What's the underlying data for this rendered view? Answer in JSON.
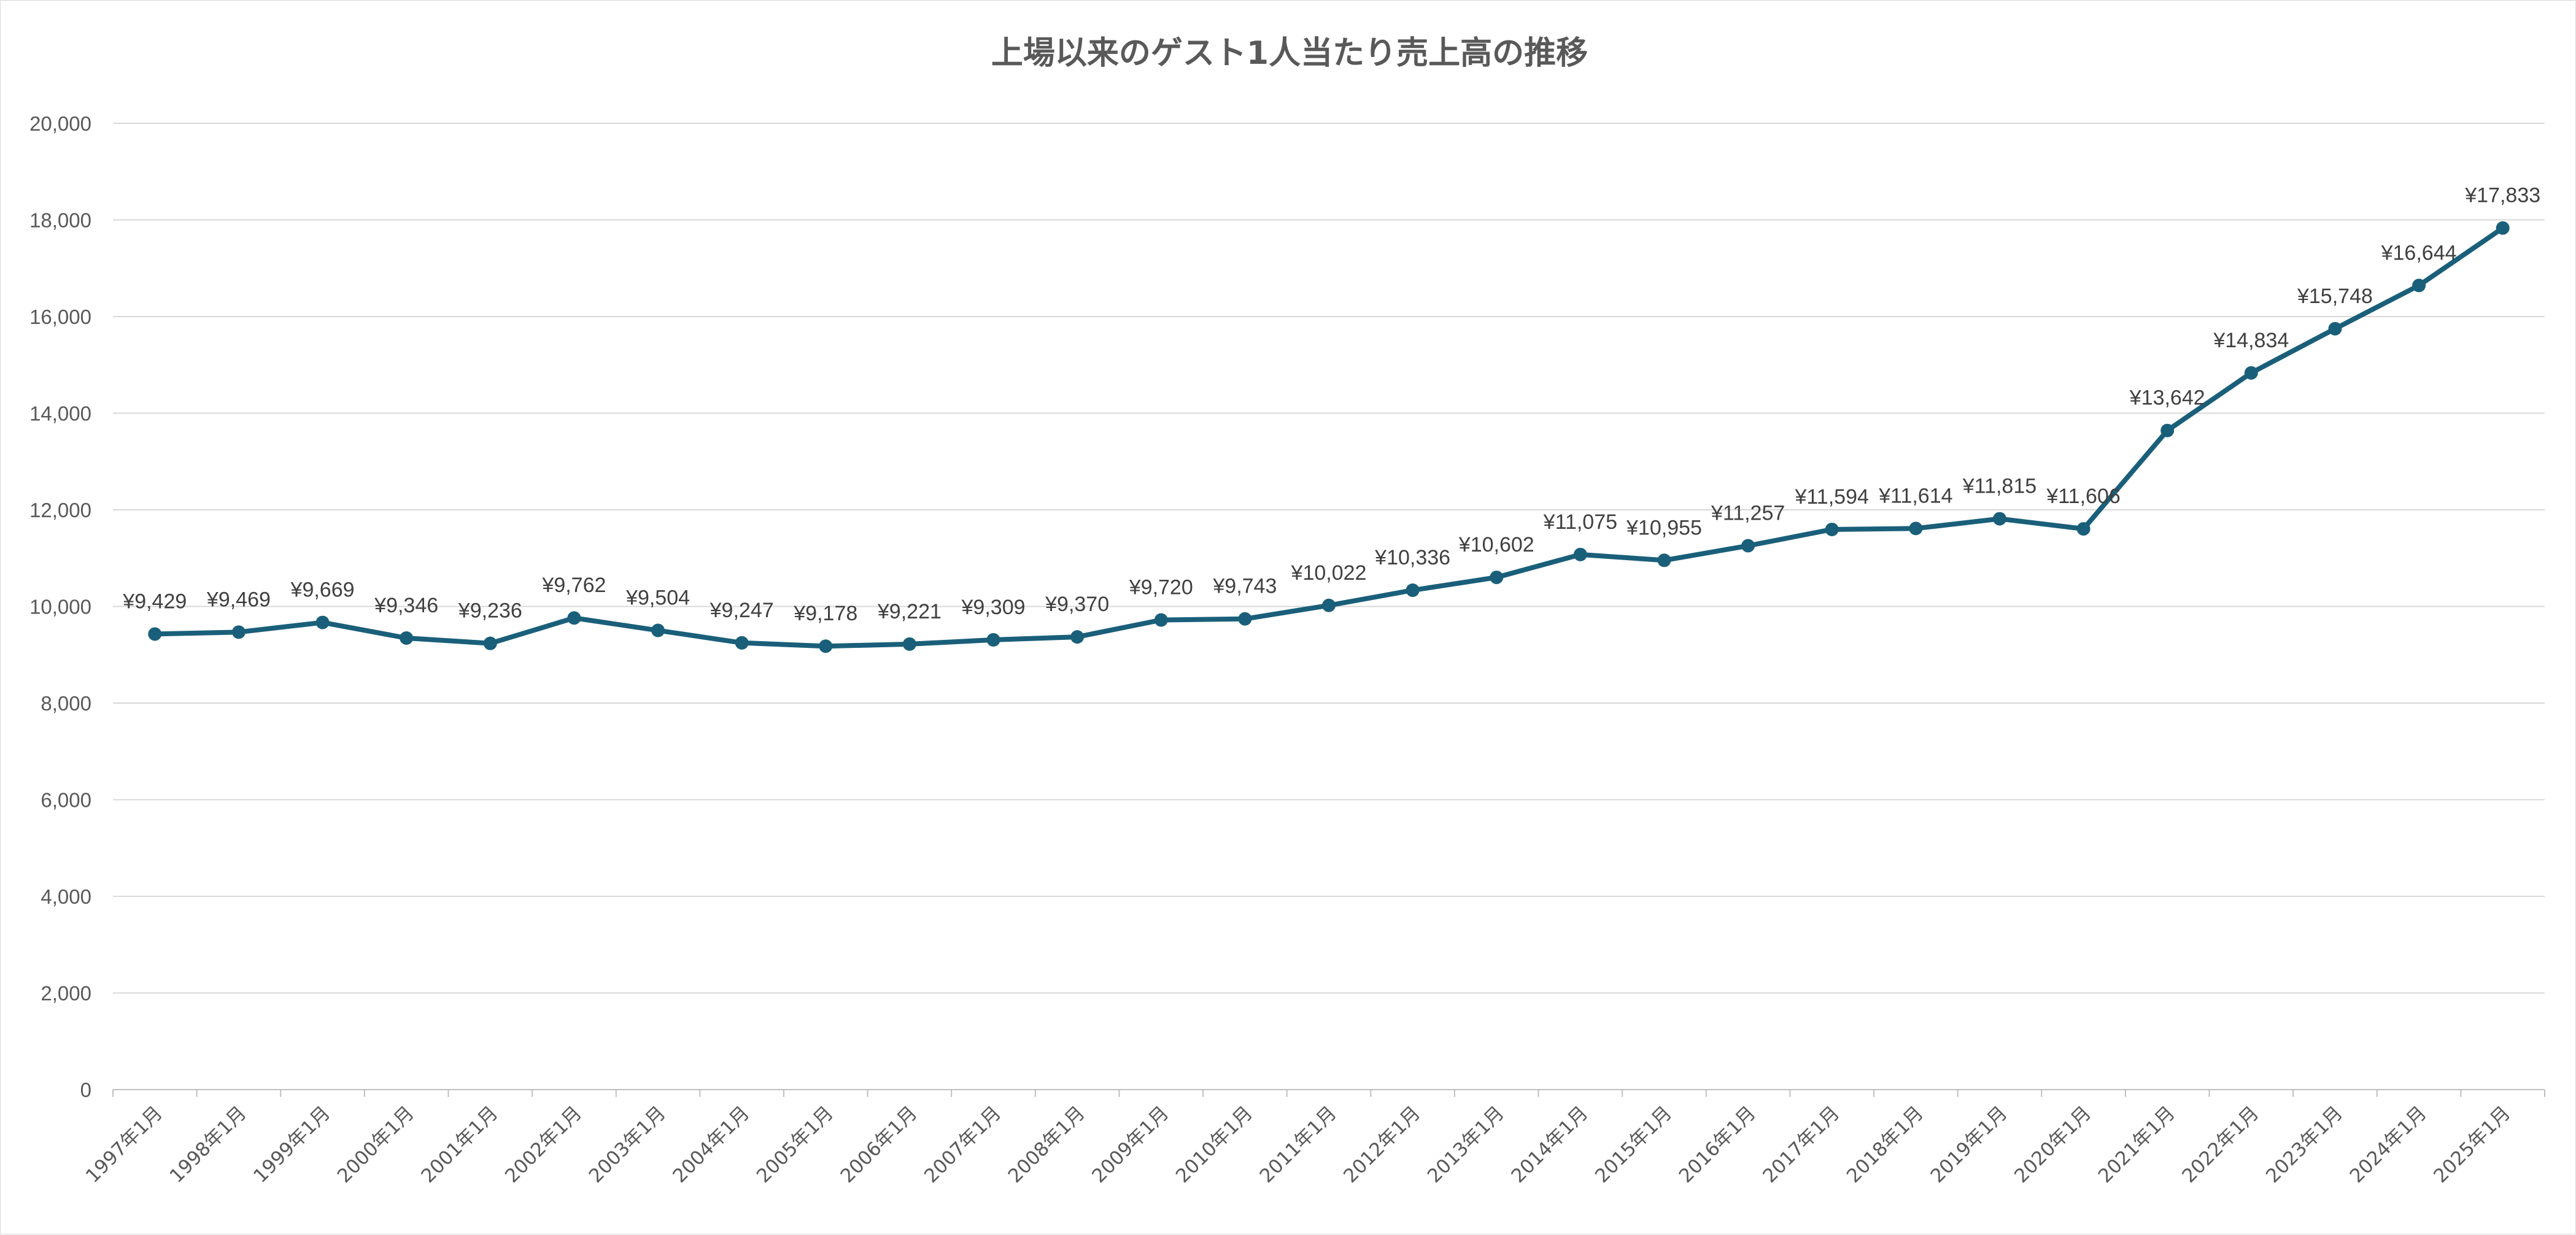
{
  "chart_data": {
    "type": "line",
    "title": "上場以来のゲスト1人当たり売上高の推移",
    "xlabel": "",
    "ylabel": "",
    "ylim": [
      0,
      20000
    ],
    "yticks": [
      0,
      2000,
      4000,
      6000,
      8000,
      10000,
      12000,
      14000,
      16000,
      18000,
      20000
    ],
    "ytick_labels": [
      "0",
      "2,000",
      "4,000",
      "6,000",
      "8,000",
      "10,000",
      "12,000",
      "14,000",
      "16,000",
      "18,000",
      "20,000"
    ],
    "grid": true,
    "legend": "none",
    "line_color": "#1a5f7a",
    "categories": [
      "1997年1月",
      "1998年1月",
      "1999年1月",
      "2000年1月",
      "2001年1月",
      "2002年1月",
      "2003年1月",
      "2004年1月",
      "2005年1月",
      "2006年1月",
      "2007年1月",
      "2008年1月",
      "2009年1月",
      "2010年1月",
      "2011年1月",
      "2012年1月",
      "2013年1月",
      "2014年1月",
      "2015年1月",
      "2016年1月",
      "2017年1月",
      "2018年1月",
      "2019年1月",
      "2020年1月",
      "2021年1月",
      "2022年1月",
      "2023年1月",
      "2024年1月",
      "2025年1月"
    ],
    "series": [
      {
        "name": "ゲスト1人当たり売上高",
        "values": [
          9429,
          9469,
          9669,
          9346,
          9236,
          9762,
          9504,
          9247,
          9178,
          9221,
          9309,
          9370,
          9720,
          9743,
          10022,
          10336,
          10602,
          11075,
          10955,
          11257,
          11594,
          11614,
          11815,
          11606,
          13642,
          14834,
          15748,
          16644,
          17833
        ],
        "labels": [
          "¥9,429",
          "¥9,469",
          "¥9,669",
          "¥9,346",
          "¥9,236",
          "¥9,762",
          "¥9,504",
          "¥9,247",
          "¥9,178",
          "¥9,221",
          "¥9,309",
          "¥9,370",
          "¥9,720",
          "¥9,743",
          "¥10,022",
          "¥10,336",
          "¥10,602",
          "¥11,075",
          "¥10,955",
          "¥11,257",
          "¥11,594",
          "¥11,614",
          "¥11,815",
          "¥11,606",
          "¥13,642",
          "¥14,834",
          "¥15,748",
          "¥16,644",
          "¥17,833"
        ]
      }
    ]
  }
}
